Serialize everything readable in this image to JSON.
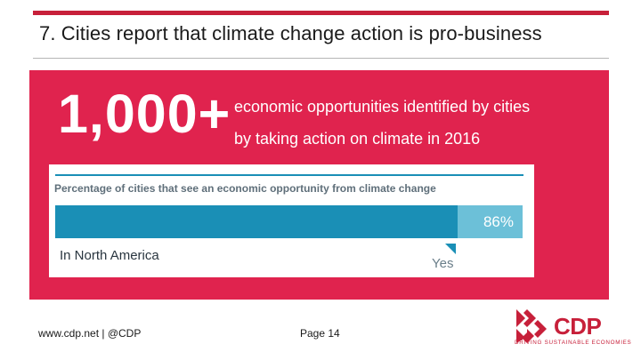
{
  "slide": {
    "title": "7. Cities report that climate change action is pro-business"
  },
  "hero": {
    "number": "1,000+",
    "line1": "economic opportunities identified by cities",
    "line2": "by taking action on climate in 2016"
  },
  "bar_card": {
    "title": "Percentage of cities that see an economic opportunity from climate change",
    "percent": 86,
    "value_label": "86%",
    "category_label": "Yes",
    "region_label": "In North America"
  },
  "footer": {
    "url": "www.cdp.net | @CDP",
    "page": "Page 14"
  },
  "logo": {
    "word": "CDP",
    "tagline": "DRIVING SUSTAINABLE ECONOMIES"
  },
  "colors": {
    "brand_red": "#c7203a",
    "panel_red": "#e0234e",
    "bar_dark": "#1a8fb6",
    "bar_light": "#6cc0d8"
  }
}
